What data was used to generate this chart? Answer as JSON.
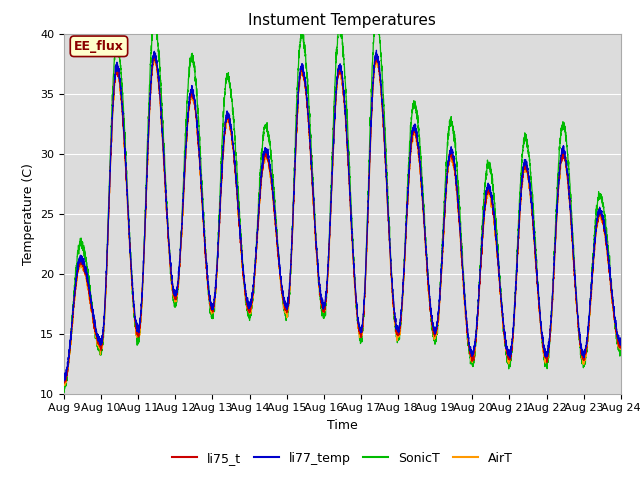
{
  "title": "Instument Temperatures",
  "xlabel": "Time",
  "ylabel": "Temperature (C)",
  "ylim": [
    10,
    40
  ],
  "xlim_start": 0,
  "xlim_end": 15,
  "x_tick_labels": [
    "Aug 9",
    "Aug 10",
    "Aug 11",
    "Aug 12",
    "Aug 13",
    "Aug 14",
    "Aug 15",
    "Aug 16",
    "Aug 17",
    "Aug 18",
    "Aug 19",
    "Aug 20",
    "Aug 21",
    "Aug 22",
    "Aug 23",
    "Aug 24"
  ],
  "fig_bg_color": "#ffffff",
  "plot_bg_color": "#dcdcdc",
  "annotation_text": "EE_flux",
  "annotation_color": "#8b0000",
  "annotation_bg": "#ffffcc",
  "legend_labels": [
    "li75_t",
    "li77_temp",
    "SonicT",
    "AirT"
  ],
  "line_colors": [
    "#cc0000",
    "#0000cc",
    "#00bb00",
    "#ff9900"
  ],
  "title_fontsize": 11,
  "axis_fontsize": 9,
  "tick_fontsize": 8,
  "legend_fontsize": 9
}
